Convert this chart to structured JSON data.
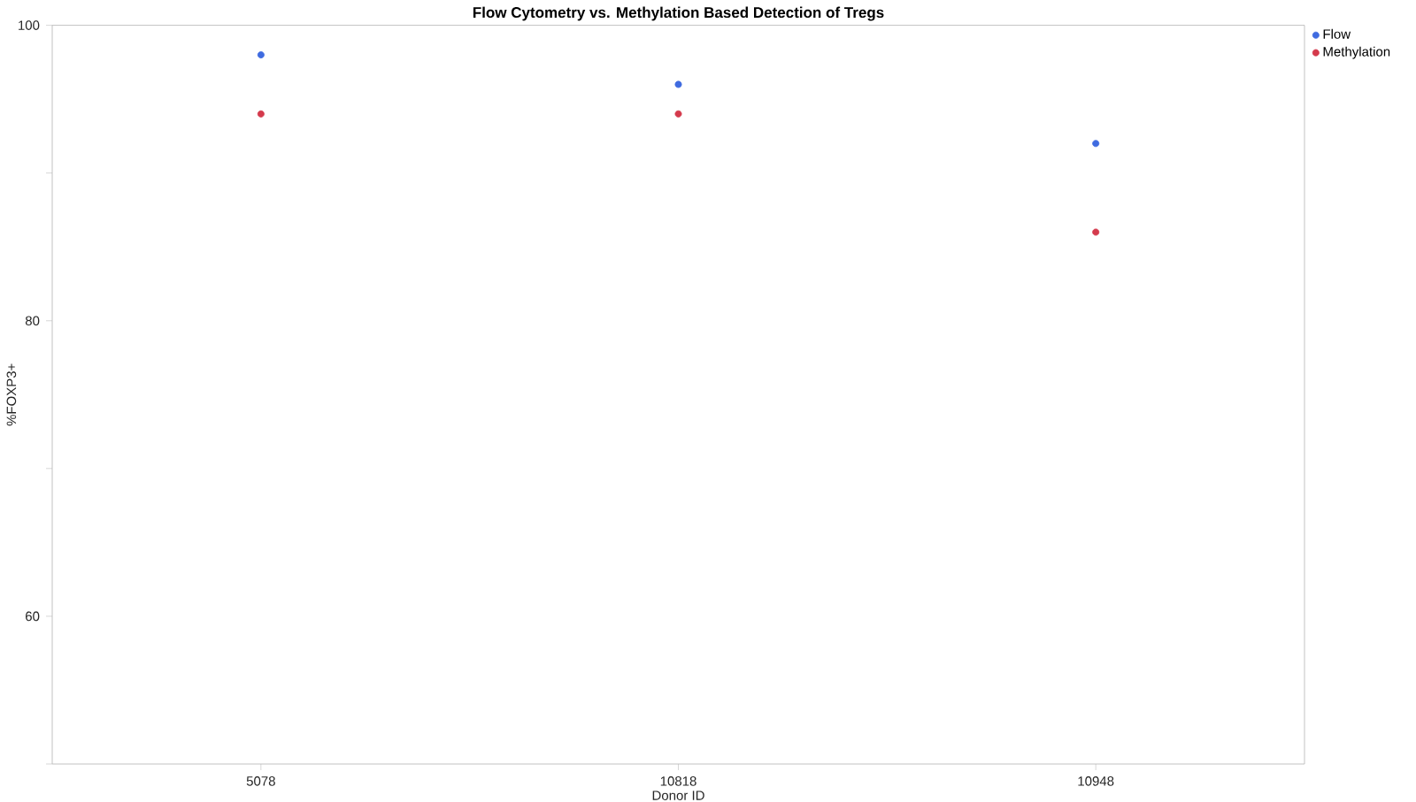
{
  "chart_data": {
    "type": "scatter",
    "title": "Flow Cytometry vs. Methylation Based Detection of Tregs",
    "xlabel": "Donor ID",
    "ylabel": "%FOXP3+",
    "categories": [
      "5078",
      "10818",
      "10948"
    ],
    "series": [
      {
        "name": "Flow",
        "color": "#3f6be0",
        "values": [
          98,
          96,
          92
        ]
      },
      {
        "name": "Methylation",
        "color": "#d43a4c",
        "values": [
          94,
          94,
          86
        ]
      }
    ],
    "ylim": [
      50,
      100
    ],
    "yticks": [
      {
        "value": 50,
        "label": null
      },
      60,
      {
        "value": 70,
        "label": null
      },
      80,
      {
        "value": 90,
        "label": null
      },
      100
    ],
    "marker": "circle",
    "legend": "top right",
    "grid": false
  }
}
